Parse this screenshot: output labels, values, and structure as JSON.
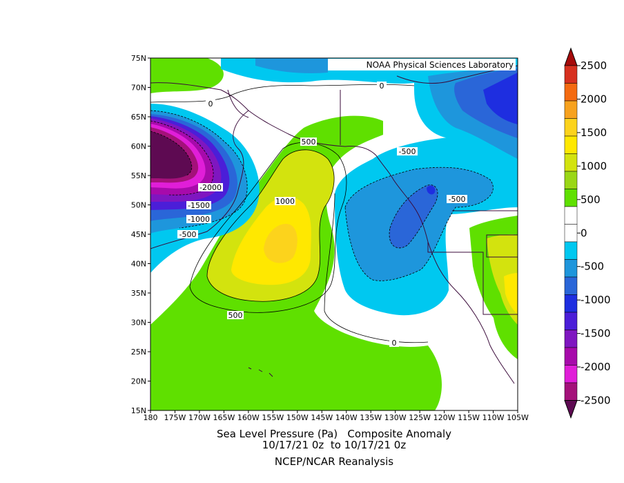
{
  "header": {
    "credit": "NOAA Physical Sciences Laboratory"
  },
  "map": {
    "lat_labels": [
      "75N",
      "70N",
      "65N",
      "60N",
      "55N",
      "50N",
      "45N",
      "40N",
      "35N",
      "30N",
      "25N",
      "20N",
      "15N"
    ],
    "lon_labels": [
      "180",
      "175W",
      "170W",
      "165W",
      "160W",
      "155W",
      "150W",
      "145W",
      "140W",
      "135W",
      "130W",
      "125W",
      "120W",
      "115W",
      "110W",
      "105W"
    ],
    "contour_labels": [
      "0",
      "0",
      "0",
      "500",
      "500",
      "1000",
      "-500",
      "-500",
      "-500",
      "-1000",
      "-1500",
      "-2000"
    ]
  },
  "colorbar": {
    "labels": [
      "2500",
      "2000",
      "1500",
      "1000",
      "500",
      "0",
      "-500",
      "-1000",
      "-1500",
      "-2000",
      "-2500"
    ],
    "colors": [
      "#a50a0a",
      "#d7301f",
      "#f46a10",
      "#f7a21e",
      "#fcd31c",
      "#ffe800",
      "#d3e30e",
      "#9ad716",
      "#5fe000",
      "#ffffff",
      "#ffffff",
      "#00c8f0",
      "#1e96dc",
      "#2a66d8",
      "#1e2ee0",
      "#4b1ed8",
      "#7f16c0",
      "#a70aab",
      "#e01ed8",
      "#a4117a",
      "#5e0a52"
    ]
  },
  "caption": {
    "line1": "Sea Level Pressure (Pa)   Composite Anomaly",
    "line2": "10/17/21 0z  to 10/17/21 0z",
    "line3": "NCEP/NCAR Reanalysis"
  }
}
